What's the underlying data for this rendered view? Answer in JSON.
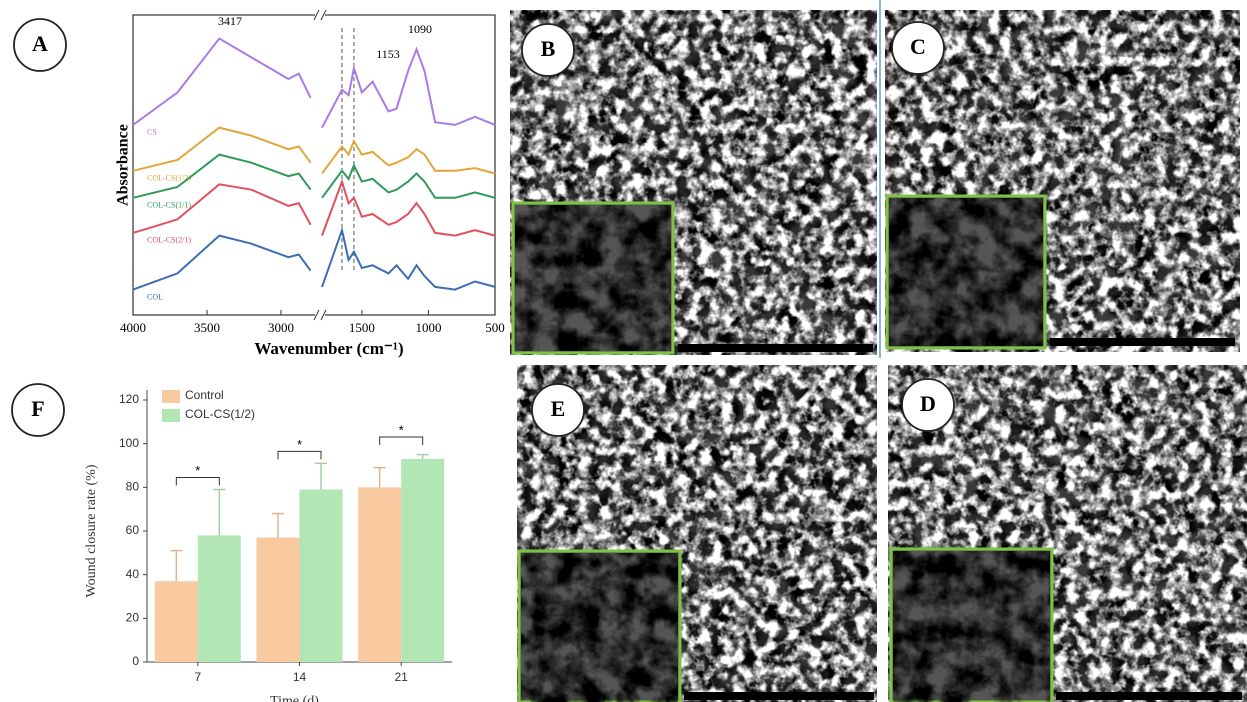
{
  "chart_data": [
    {
      "type": "line",
      "y_label": "Absorbance",
      "x_label": "Wavenumber (cm⁻¹)",
      "x": [
        4000,
        3700,
        3417,
        3200,
        2950,
        2880,
        2800,
        2300,
        1800,
        1650,
        1600,
        1560,
        1500,
        1420,
        1300,
        1240,
        1153,
        1090,
        1030,
        950,
        800,
        650,
        500
      ],
      "xlim": [
        4000,
        500
      ],
      "xbreak": [
        2750,
        1800
      ],
      "xticks": [
        4000,
        3500,
        3000,
        1500,
        1000,
        500
      ],
      "ylim": [
        0,
        10
      ],
      "reference_lines": [
        1650,
        1560
      ],
      "annotations": [
        "3417",
        "1153",
        "1090"
      ],
      "series": [
        {
          "name": "CS",
          "color": "#a87be6",
          "values": [
            6.3,
            7.5,
            9.5,
            8.8,
            8.0,
            8.2,
            7.3,
            null,
            6.2,
            7.6,
            7.4,
            8.4,
            7.5,
            7.9,
            6.8,
            6.9,
            8.3,
            9.1,
            8.3,
            6.4,
            6.3,
            6.6,
            6.3
          ]
        },
        {
          "name": "COL-CS(1/2)",
          "color": "#e3a43a",
          "values": [
            4.6,
            5.0,
            6.2,
            5.9,
            5.4,
            5.5,
            4.9,
            null,
            4.5,
            5.5,
            5.2,
            5.7,
            5.2,
            5.3,
            4.8,
            4.9,
            5.1,
            5.4,
            5.2,
            4.6,
            4.6,
            4.7,
            4.5
          ]
        },
        {
          "name": "COL-CS(1/1)",
          "color": "#2f9a5a",
          "values": [
            3.6,
            4.0,
            5.2,
            4.9,
            4.4,
            4.5,
            3.9,
            null,
            3.6,
            4.6,
            4.3,
            4.8,
            4.2,
            4.3,
            3.8,
            3.9,
            4.2,
            4.5,
            4.2,
            3.6,
            3.6,
            3.8,
            3.6
          ]
        },
        {
          "name": "COL-CS(2/1)",
          "color": "#e2505d",
          "values": [
            2.3,
            2.8,
            4.1,
            3.9,
            3.3,
            3.4,
            2.6,
            null,
            2.2,
            4.2,
            3.4,
            3.6,
            2.9,
            3.0,
            2.6,
            2.7,
            3.0,
            3.4,
            3.0,
            2.3,
            2.2,
            2.4,
            2.2
          ]
        },
        {
          "name": "COL",
          "color": "#3d6db3",
          "values": [
            0.2,
            0.8,
            2.2,
            1.9,
            1.4,
            1.5,
            0.9,
            null,
            0.3,
            2.4,
            1.3,
            1.6,
            1.0,
            1.1,
            0.8,
            1.1,
            0.6,
            1.1,
            0.7,
            0.3,
            0.2,
            0.5,
            0.3
          ]
        }
      ]
    },
    {
      "type": "bar",
      "y_label": "Wound closure rate (%)",
      "x_label": "Time (d)",
      "categories": [
        "7",
        "14",
        "21"
      ],
      "ylim": [
        0,
        120
      ],
      "yticks": [
        0,
        20,
        40,
        60,
        80,
        100,
        120
      ],
      "legend": "upper left",
      "significance": [
        "*",
        "*",
        "*"
      ],
      "series": [
        {
          "name": "Control",
          "color": "#f9c9a0",
          "values": [
            37,
            57,
            80
          ],
          "errors": [
            14,
            11,
            9
          ]
        },
        {
          "name": "COL-CS(1/2)",
          "color": "#b3e6b5",
          "values": [
            58,
            79,
            93
          ],
          "errors": [
            21,
            12,
            2
          ]
        }
      ]
    }
  ],
  "panels": [
    "A",
    "B",
    "C",
    "F",
    "E",
    "D"
  ]
}
